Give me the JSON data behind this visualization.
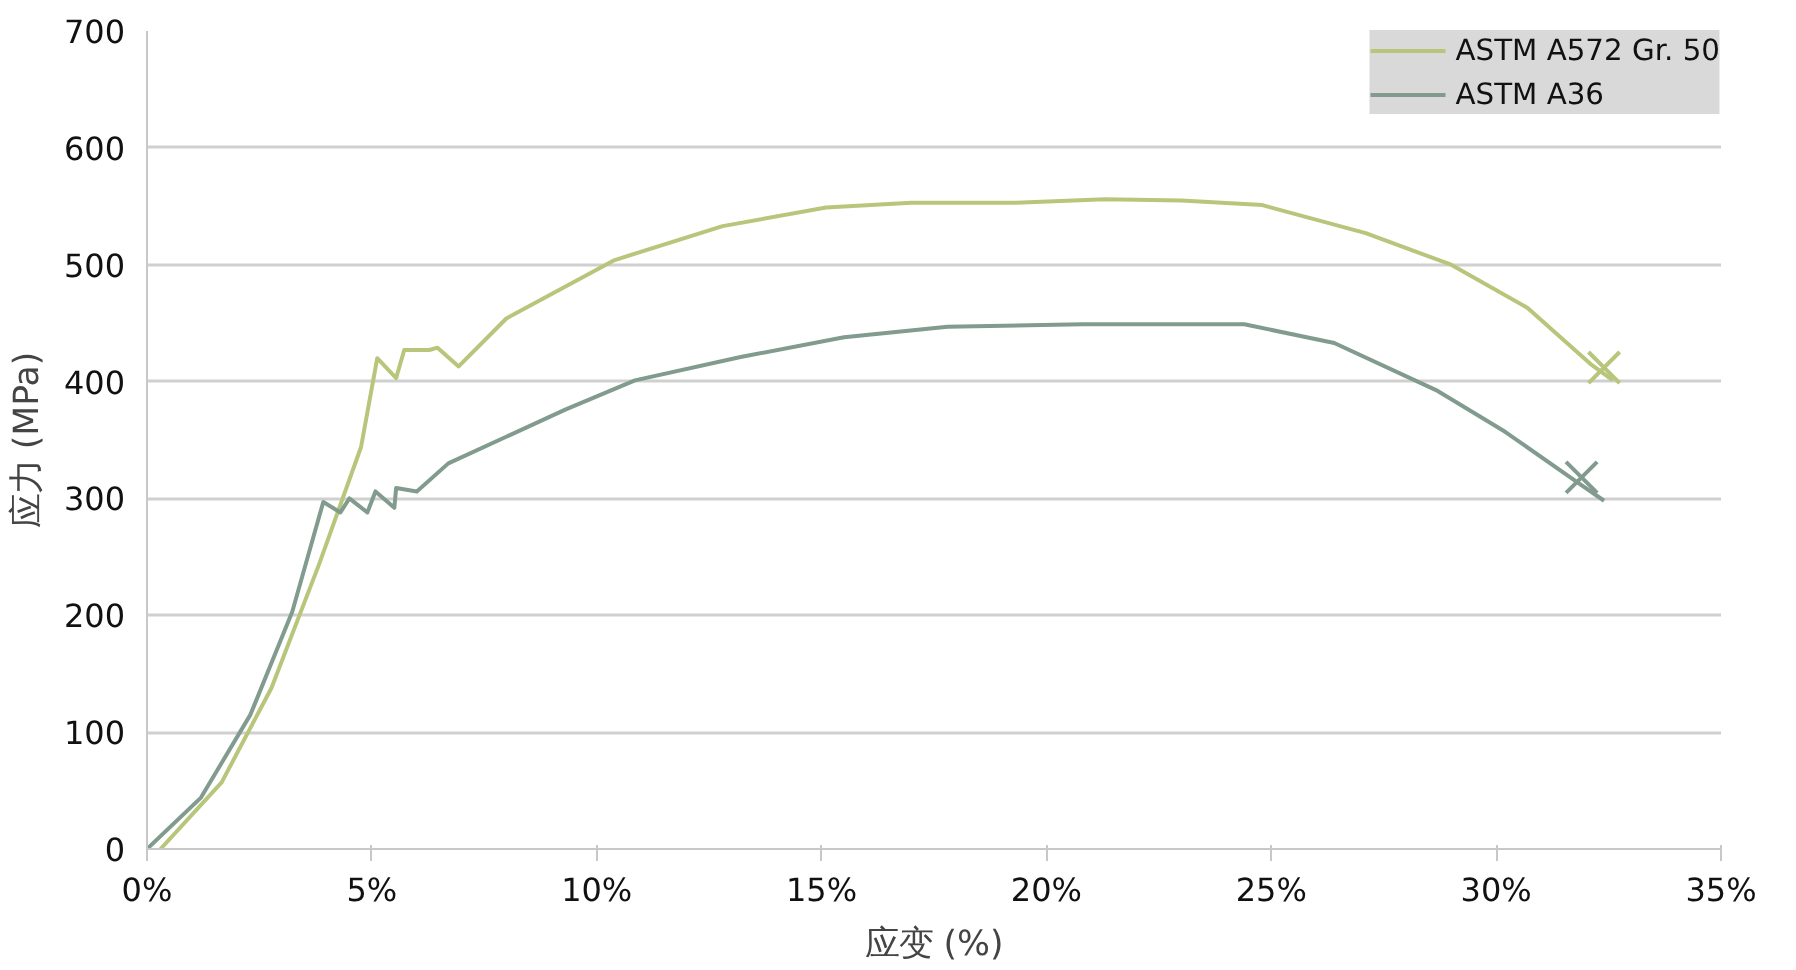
{
  "chart_data": {
    "type": "line",
    "xlabel": "应变 (%)",
    "ylabel": "应力 (MPa)",
    "xlim": [
      0,
      35
    ],
    "ylim": [
      0,
      700
    ],
    "xticks": [
      {
        "value": 0,
        "label": "0%"
      },
      {
        "value": 5,
        "label": "5%"
      },
      {
        "value": 10,
        "label": "10%"
      },
      {
        "value": 15,
        "label": "15%"
      },
      {
        "value": 20,
        "label": "20%"
      },
      {
        "value": 25,
        "label": "25%"
      },
      {
        "value": 30,
        "label": "30%"
      },
      {
        "value": 35,
        "label": "35%"
      }
    ],
    "yticks": [
      0,
      100,
      200,
      300,
      400,
      500,
      600,
      700
    ],
    "grid": "y",
    "legend": "top right",
    "marker": "none",
    "line_style": "solid",
    "series": [
      {
        "name": "ASTM A572 Gr. 50",
        "color": "#b8c67c",
        "x": [
          0.3,
          1.66,
          2.77,
          3.83,
          4.76,
          5.12,
          5.54,
          5.72,
          6.28,
          6.46,
          6.93,
          7.99,
          10.4,
          12.8,
          15.1,
          17.0,
          19.3,
          21.3,
          23.0,
          24.8,
          27.1,
          29.0,
          30.7,
          32.1,
          32.6
        ],
        "values": [
          0,
          57,
          138,
          244,
          344,
          420,
          403,
          427,
          427,
          429,
          413,
          454,
          504,
          533,
          549,
          553,
          553,
          556,
          555,
          551,
          527,
          500,
          463,
          415,
          401
        ]
      },
      {
        "name": "ASTM A36",
        "color": "#819b8e",
        "x": [
          0,
          1.2,
          2.3,
          3.23,
          3.92,
          4.3,
          4.5,
          4.9,
          5.08,
          5.5,
          5.54,
          6.0,
          6.7,
          8.0,
          9.3,
          10.85,
          13.2,
          15.5,
          17.8,
          20.8,
          23.0,
          24.4,
          26.4,
          28.7,
          30.2,
          31.8,
          32.4
        ],
        "values": [
          0,
          44,
          115,
          203,
          297,
          288,
          300,
          288,
          306,
          292,
          309,
          306,
          330,
          353,
          376,
          401,
          421,
          438,
          447,
          449,
          449,
          449,
          433,
          392,
          357,
          314,
          298
        ]
      },
      {
        "type": "scatter",
        "marker": "cross",
        "color": "#b8c67c",
        "x": [
          32.4
        ],
        "values": [
          412
        ]
      },
      {
        "type": "scatter",
        "marker": "cross",
        "color": "#819b8e",
        "x": [
          31.9
        ],
        "values": [
          318
        ]
      }
    ]
  }
}
